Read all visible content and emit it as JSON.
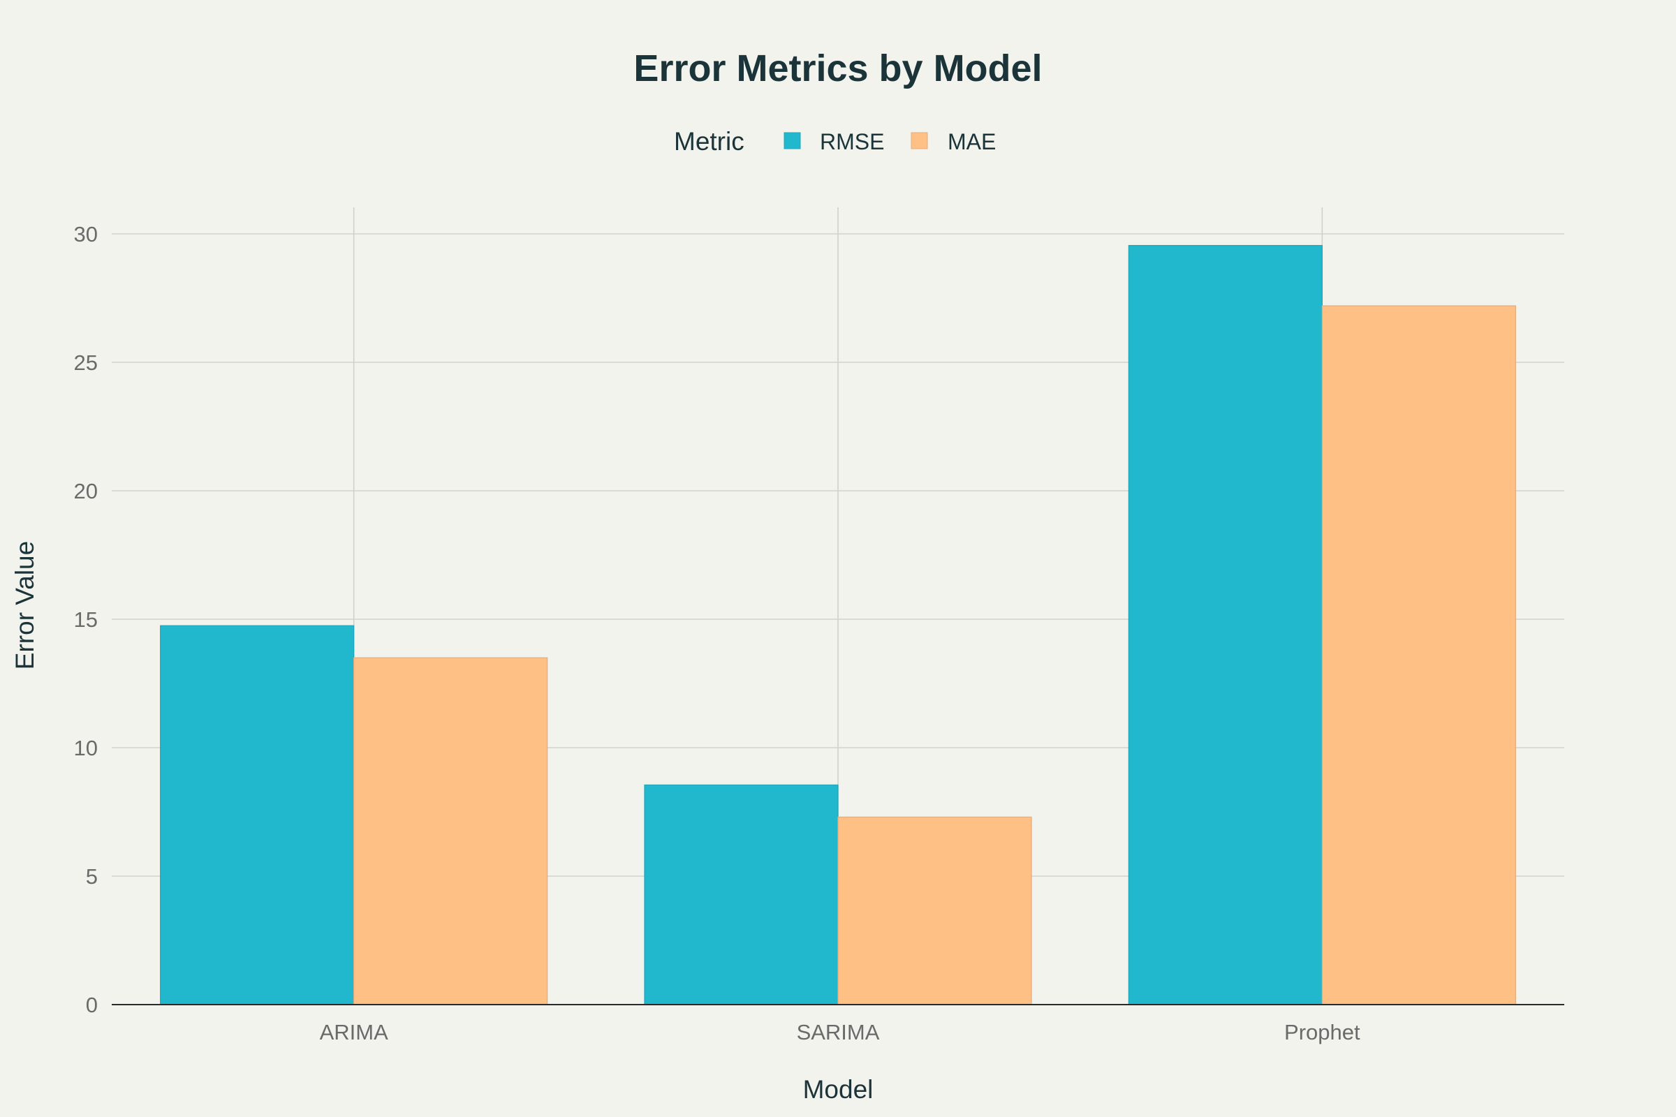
{
  "chart_data": {
    "type": "bar",
    "title": "Error Metrics by Model",
    "xlabel": "Model",
    "ylabel": "Error Value",
    "categories": [
      "ARIMA",
      "SARIMA",
      "Prophet"
    ],
    "series": [
      {
        "name": "RMSE",
        "values": [
          14.75,
          8.55,
          29.55
        ],
        "color": "#21b7cc"
      },
      {
        "name": "MAE",
        "values": [
          13.5,
          7.3,
          27.2
        ],
        "color": "#ffc086"
      }
    ],
    "ylim": [
      0,
      31
    ],
    "yticks": [
      0,
      5,
      10,
      15,
      20,
      25,
      30
    ],
    "legend": {
      "title": "Metric",
      "placement": "top-center"
    },
    "grid": true
  }
}
